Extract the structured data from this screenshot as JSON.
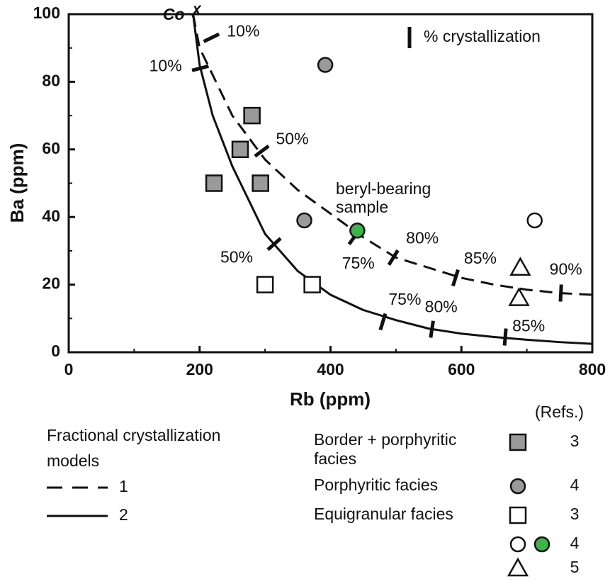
{
  "chart_data": {
    "type": "scatter",
    "xlabel": "Rb (ppm)",
    "ylabel": "Ba (ppm)",
    "xlim": [
      0,
      800
    ],
    "ylim": [
      0,
      100
    ],
    "xticks": [
      0,
      200,
      400,
      600,
      800
    ],
    "yticks": [
      0,
      20,
      40,
      60,
      80,
      100
    ],
    "xminorticks": [
      100,
      300,
      500,
      700
    ],
    "yminorticks": [
      10,
      30,
      50,
      70,
      90
    ],
    "source_point": {
      "label": "Co",
      "x": 190,
      "y": 100
    },
    "crystallization_legend": "% crystallization",
    "models_title": [
      "Fractional crystallization",
      "models"
    ],
    "models": [
      {
        "label": "1",
        "style": "dashed",
        "x": [
          190,
          200,
          250,
          300,
          350,
          400,
          450,
          500,
          550,
          600,
          650,
          700,
          750,
          800
        ],
        "y": [
          100,
          90,
          70,
          57,
          48,
          41,
          34,
          28,
          25,
          22,
          20,
          18.5,
          17.5,
          17
        ],
        "crystallization": [
          {
            "x": 218,
            "y": 93,
            "label": "10%"
          },
          {
            "x": 295,
            "y": 59.5,
            "label": "50%"
          },
          {
            "x": 436,
            "y": 34,
            "label": "75%"
          },
          {
            "x": 496,
            "y": 28,
            "label": "80%"
          },
          {
            "x": 591,
            "y": 22,
            "label": "85%"
          },
          {
            "x": 752,
            "y": 17.5,
            "label": "90%"
          }
        ]
      },
      {
        "label": "2",
        "style": "solid",
        "x": [
          190,
          200,
          220,
          250,
          300,
          350,
          400,
          450,
          500,
          550,
          600,
          650,
          700,
          750,
          800
        ],
        "y": [
          100,
          85,
          70,
          55,
          35,
          24,
          17,
          12.5,
          9.5,
          7,
          5.5,
          4.5,
          3.7,
          3,
          2.5
        ],
        "crystallization": [
          {
            "x": 201,
            "y": 84,
            "label": "10%"
          },
          {
            "x": 314,
            "y": 32,
            "label": "50%"
          },
          {
            "x": 480,
            "y": 9,
            "label": "75%"
          },
          {
            "x": 555,
            "y": 6.8,
            "label": "80%"
          },
          {
            "x": 667,
            "y": 4.5,
            "label": "85%"
          }
        ]
      }
    ],
    "refs_title": "(Refs.)",
    "series": [
      {
        "name": [
          "Border + porphyritic",
          "facies"
        ],
        "marker": "square",
        "color": "#9a9a9a",
        "refs": 3,
        "x": [
          280,
          262,
          222,
          293
        ],
        "values": [
          70,
          60,
          50,
          50
        ]
      },
      {
        "name": [
          "Porphyritic facies"
        ],
        "marker": "circle",
        "color": "#9a9a9a",
        "refs": 4,
        "x": [
          392,
          360
        ],
        "values": [
          85,
          39
        ]
      },
      {
        "name": [
          "Equigranular facies"
        ],
        "marker": "square",
        "color": "#ffffff",
        "refs": 3,
        "x": [
          300,
          372
        ],
        "values": [
          20,
          20
        ]
      },
      {
        "marker": "circle",
        "color": "#ffffff",
        "refs": 4,
        "x": [
          712
        ],
        "values": [
          39
        ]
      },
      {
        "marker": "circle",
        "color": "#3cb44a",
        "x": [
          441
        ],
        "values": [
          36
        ]
      },
      {
        "marker": "triangle",
        "color": "#ffffff",
        "refs": 5,
        "x": [
          690,
          688
        ],
        "values": [
          25,
          16
        ]
      }
    ],
    "annotation": {
      "text": [
        "beryl-bearing",
        "sample"
      ],
      "x": 441,
      "y": 36
    }
  }
}
